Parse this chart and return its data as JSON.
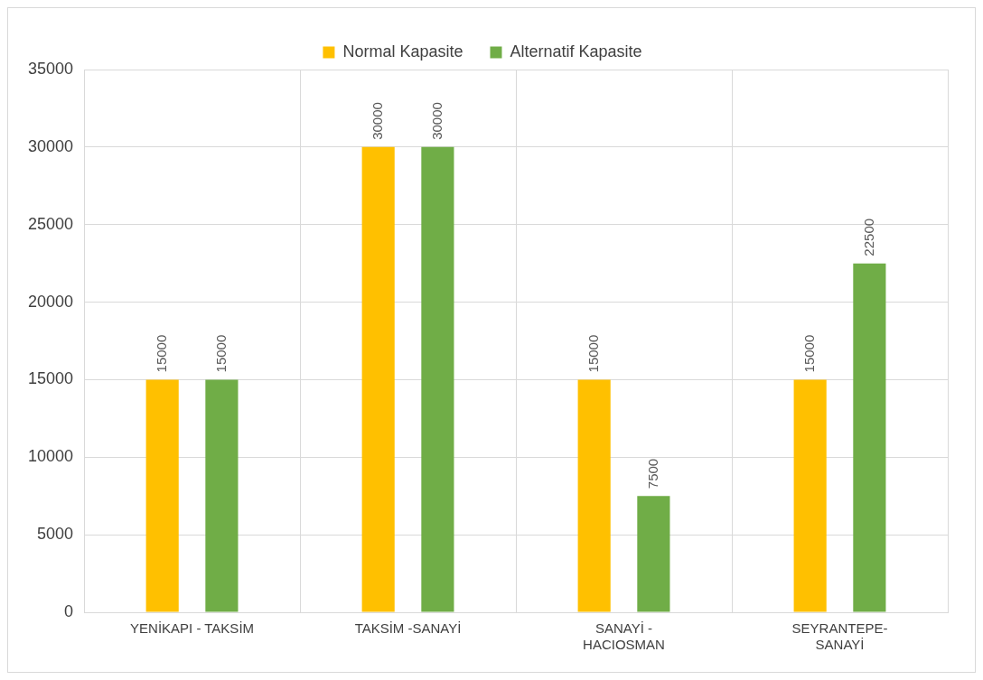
{
  "chart_data": {
    "type": "bar",
    "categories": [
      "YENİKAPI - TAKSİM",
      "TAKSİM -SANAYİ",
      "SANAYİ - HACIOSMAN",
      "SEYRANTEPE- SANAYİ"
    ],
    "series": [
      {
        "name": "Normal Kapasite",
        "color": "#ffc000",
        "values": [
          15000,
          30000,
          15000,
          15000
        ]
      },
      {
        "name": "Alternatif Kapasite",
        "color": "#70ad47",
        "values": [
          15000,
          30000,
          7500,
          22500
        ]
      }
    ],
    "ylim": [
      0,
      35000
    ],
    "yticks": [
      0,
      5000,
      10000,
      15000,
      20000,
      25000,
      30000,
      35000
    ],
    "grid": true,
    "legend": "top",
    "data_labels": true
  }
}
